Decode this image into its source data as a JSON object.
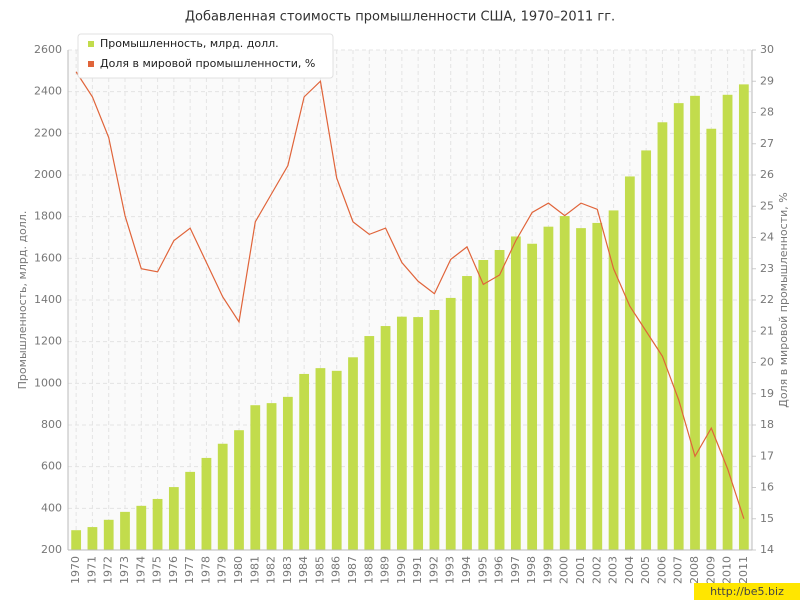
{
  "chart_data": {
    "type": "bar_line",
    "title": "Добавленная стоимость промышленности США, 1970–2011 гг.",
    "y_label": "Промышленность, млрд. долл.",
    "y2_label": "Доля в мировой промышленности, %",
    "categories": [
      "1970",
      "1971",
      "1972",
      "1973",
      "1974",
      "1975",
      "1976",
      "1977",
      "1978",
      "1979",
      "1980",
      "1981",
      "1982",
      "1983",
      "1984",
      "1985",
      "1986",
      "1987",
      "1988",
      "1989",
      "1990",
      "1991",
      "1992",
      "1993",
      "1994",
      "1995",
      "1996",
      "1997",
      "1998",
      "1999",
      "2000",
      "2001",
      "2002",
      "2003",
      "2004",
      "2005",
      "2006",
      "2007",
      "2008",
      "2009",
      "2010",
      "2011"
    ],
    "series": [
      {
        "name": "Промышленность, млрд. долл.",
        "color": "#c2dc4c",
        "kind": "bar",
        "values": [
          295,
          310,
          345,
          383,
          412,
          445,
          502,
          575,
          642,
          710,
          775,
          895,
          905,
          935,
          1045,
          1073,
          1060,
          1125,
          1227,
          1275,
          1320,
          1318,
          1352,
          1410,
          1515,
          1592,
          1640,
          1705,
          1670,
          1752,
          1803,
          1745,
          1770,
          1830,
          1993,
          2118,
          2253,
          2345,
          2380,
          2222,
          2385,
          2435
        ]
      },
      {
        "name": "Доля в мировой промышленности, %",
        "color": "#e0643a",
        "kind": "line",
        "axis": "y2",
        "values": [
          29.3,
          28.5,
          27.2,
          24.7,
          23.0,
          22.9,
          23.9,
          24.3,
          23.2,
          22.1,
          21.3,
          24.5,
          25.4,
          26.3,
          28.5,
          29.0,
          25.9,
          24.5,
          24.1,
          24.3,
          23.2,
          22.6,
          22.2,
          23.3,
          23.7,
          22.5,
          22.8,
          23.9,
          24.8,
          25.1,
          24.7,
          25.1,
          24.9,
          23.0,
          21.8,
          21.0,
          20.2,
          18.8,
          17.0,
          17.9,
          16.6,
          15.0
        ]
      }
    ],
    "ylim": [
      200,
      2600
    ],
    "yticks": [
      200,
      400,
      600,
      800,
      1000,
      1200,
      1400,
      1600,
      1800,
      2000,
      2200,
      2400,
      2600
    ],
    "y2lim": [
      14,
      30
    ],
    "y2ticks": [
      14,
      15,
      16,
      17,
      18,
      19,
      20,
      21,
      22,
      23,
      24,
      25,
      26,
      27,
      28,
      29,
      30
    ],
    "grid": true,
    "legend": "top-left",
    "watermark": "http://be5.biz"
  }
}
